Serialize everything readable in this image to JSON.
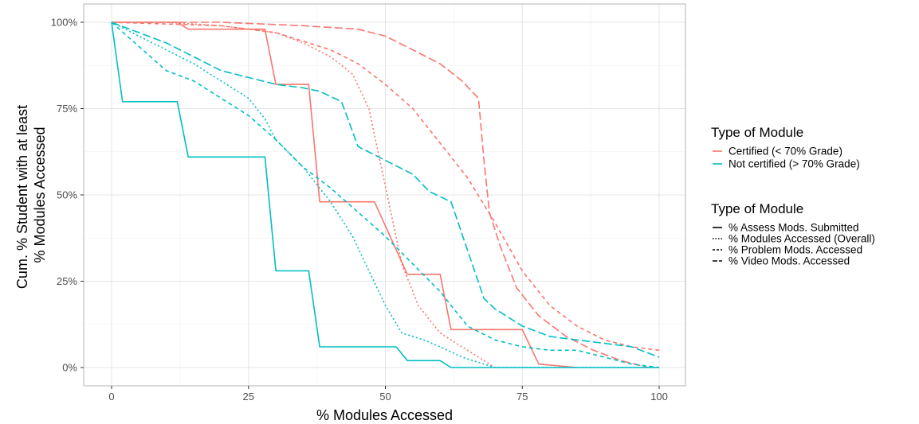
{
  "chart_data": {
    "type": "line",
    "title": "",
    "xlabel": "% Modules Accessed",
    "ylabel_lines": [
      "Cum. % Student with at least",
      "% Modules Accessed"
    ],
    "xlim": [
      0,
      100
    ],
    "ylim": [
      0,
      100
    ],
    "x_ticks": [
      0,
      25,
      50,
      75,
      100
    ],
    "x_tick_labels": [
      "0",
      "25",
      "50",
      "75",
      "100"
    ],
    "y_ticks": [
      0,
      25,
      50,
      75,
      100
    ],
    "y_tick_labels": [
      "0%",
      "25%",
      "50%",
      "75%",
      "100%"
    ],
    "grid": true,
    "legend_placement": "right",
    "legend_color": {
      "title": "Type of Module",
      "entries": [
        {
          "label": "Certified (< 70% Grade)",
          "color": "#F8766D"
        },
        {
          "label": "Not certified (> 70% Grade)",
          "color": "#00BFC4"
        }
      ]
    },
    "legend_linetype": {
      "title": "Type of Module",
      "entries": [
        {
          "label": "% Assess Mods. Submitted",
          "dash": "solid"
        },
        {
          "label": "% Modules Accessed (Overall)",
          "dash": "dotted"
        },
        {
          "label": "% Problem Mods. Accessed",
          "dash": "dashed"
        },
        {
          "label": "% Video Mods. Accessed",
          "dash": "longdash"
        }
      ]
    },
    "series": [
      {
        "group": "Certified (< 70% Grade)",
        "module": "% Assess Mods. Submitted",
        "color": "#F8766D",
        "dash": "solid",
        "x": [
          0,
          12,
          14,
          28,
          30,
          36,
          38,
          48,
          54,
          60,
          62,
          75,
          78,
          85
        ],
        "y": [
          100,
          100,
          98,
          98,
          82,
          82,
          48,
          48,
          27,
          27,
          11,
          11,
          1,
          0
        ]
      },
      {
        "group": "Certified (< 70% Grade)",
        "module": "% Modules Accessed (Overall)",
        "color": "#F8766D",
        "dash": "dotted",
        "x": [
          0,
          10,
          20,
          30,
          35,
          40,
          44,
          47,
          49,
          51,
          53,
          56,
          60,
          64,
          66,
          68,
          70
        ],
        "y": [
          100,
          100,
          99,
          97,
          94,
          90,
          85,
          75,
          60,
          45,
          30,
          18,
          10,
          6,
          4,
          2,
          0
        ]
      },
      {
        "group": "Certified (< 70% Grade)",
        "module": "% Problem Mods. Accessed",
        "color": "#F8766D",
        "dash": "dashed",
        "x": [
          0,
          20,
          30,
          40,
          45,
          50,
          55,
          60,
          65,
          70,
          75,
          80,
          85,
          90,
          95,
          100
        ],
        "y": [
          100,
          99,
          97,
          92,
          88,
          82,
          75,
          65,
          55,
          42,
          28,
          18,
          12,
          8,
          6,
          5
        ]
      },
      {
        "group": "Certified (< 70% Grade)",
        "module": "% Video Mods. Accessed",
        "color": "#F8766D",
        "dash": "longdash",
        "x": [
          0,
          20,
          35,
          45,
          50,
          55,
          60,
          64,
          67,
          68,
          69,
          71,
          74,
          78,
          83,
          88,
          93,
          98
        ],
        "y": [
          100,
          100,
          99,
          98,
          96,
          92,
          88,
          83,
          78,
          60,
          45,
          35,
          23,
          15,
          9,
          5,
          2,
          0
        ]
      },
      {
        "group": "Not certified (> 70% Grade)",
        "module": "% Assess Mods. Submitted",
        "color": "#00BFC4",
        "dash": "solid",
        "x": [
          0,
          2,
          12,
          14,
          28,
          30,
          36,
          38,
          52,
          54,
          60,
          62,
          100
        ],
        "y": [
          100,
          77,
          77,
          61,
          61,
          28,
          28,
          6,
          6,
          2,
          2,
          0,
          0
        ]
      },
      {
        "group": "Not certified (> 70% Grade)",
        "module": "% Modules Accessed (Overall)",
        "color": "#00BFC4",
        "dash": "dotted",
        "x": [
          0,
          5,
          10,
          15,
          20,
          25,
          28,
          30,
          35,
          40,
          44,
          47,
          50,
          53,
          57,
          60,
          64,
          68,
          70,
          100
        ],
        "y": [
          100,
          96,
          92,
          88,
          83,
          78,
          72,
          66,
          58,
          48,
          38,
          28,
          18,
          10,
          8,
          6,
          3,
          1,
          0,
          0
        ]
      },
      {
        "group": "Not certified (> 70% Grade)",
        "module": "% Problem Mods. Accessed",
        "color": "#00BFC4",
        "dash": "dashed",
        "x": [
          0,
          5,
          10,
          15,
          20,
          25,
          30,
          35,
          40,
          45,
          50,
          55,
          60,
          65,
          70,
          75,
          80,
          85,
          90,
          95,
          100
        ],
        "y": [
          100,
          93,
          86,
          83,
          78,
          73,
          66,
          58,
          52,
          45,
          38,
          30,
          22,
          12,
          8,
          6,
          5,
          5,
          3,
          1,
          0
        ]
      },
      {
        "group": "Not certified (> 70% Grade)",
        "module": "% Video Mods. Accessed",
        "color": "#00BFC4",
        "dash": "longdash",
        "x": [
          0,
          10,
          15,
          20,
          25,
          30,
          35,
          38,
          42,
          45,
          50,
          55,
          58,
          62,
          65,
          68,
          70,
          75,
          80,
          85,
          90,
          95,
          100
        ],
        "y": [
          100,
          94,
          90,
          86,
          84,
          82,
          81,
          80,
          77,
          64,
          60,
          56,
          51,
          48,
          34,
          20,
          17,
          12,
          9,
          8,
          7,
          6,
          3
        ]
      }
    ]
  }
}
